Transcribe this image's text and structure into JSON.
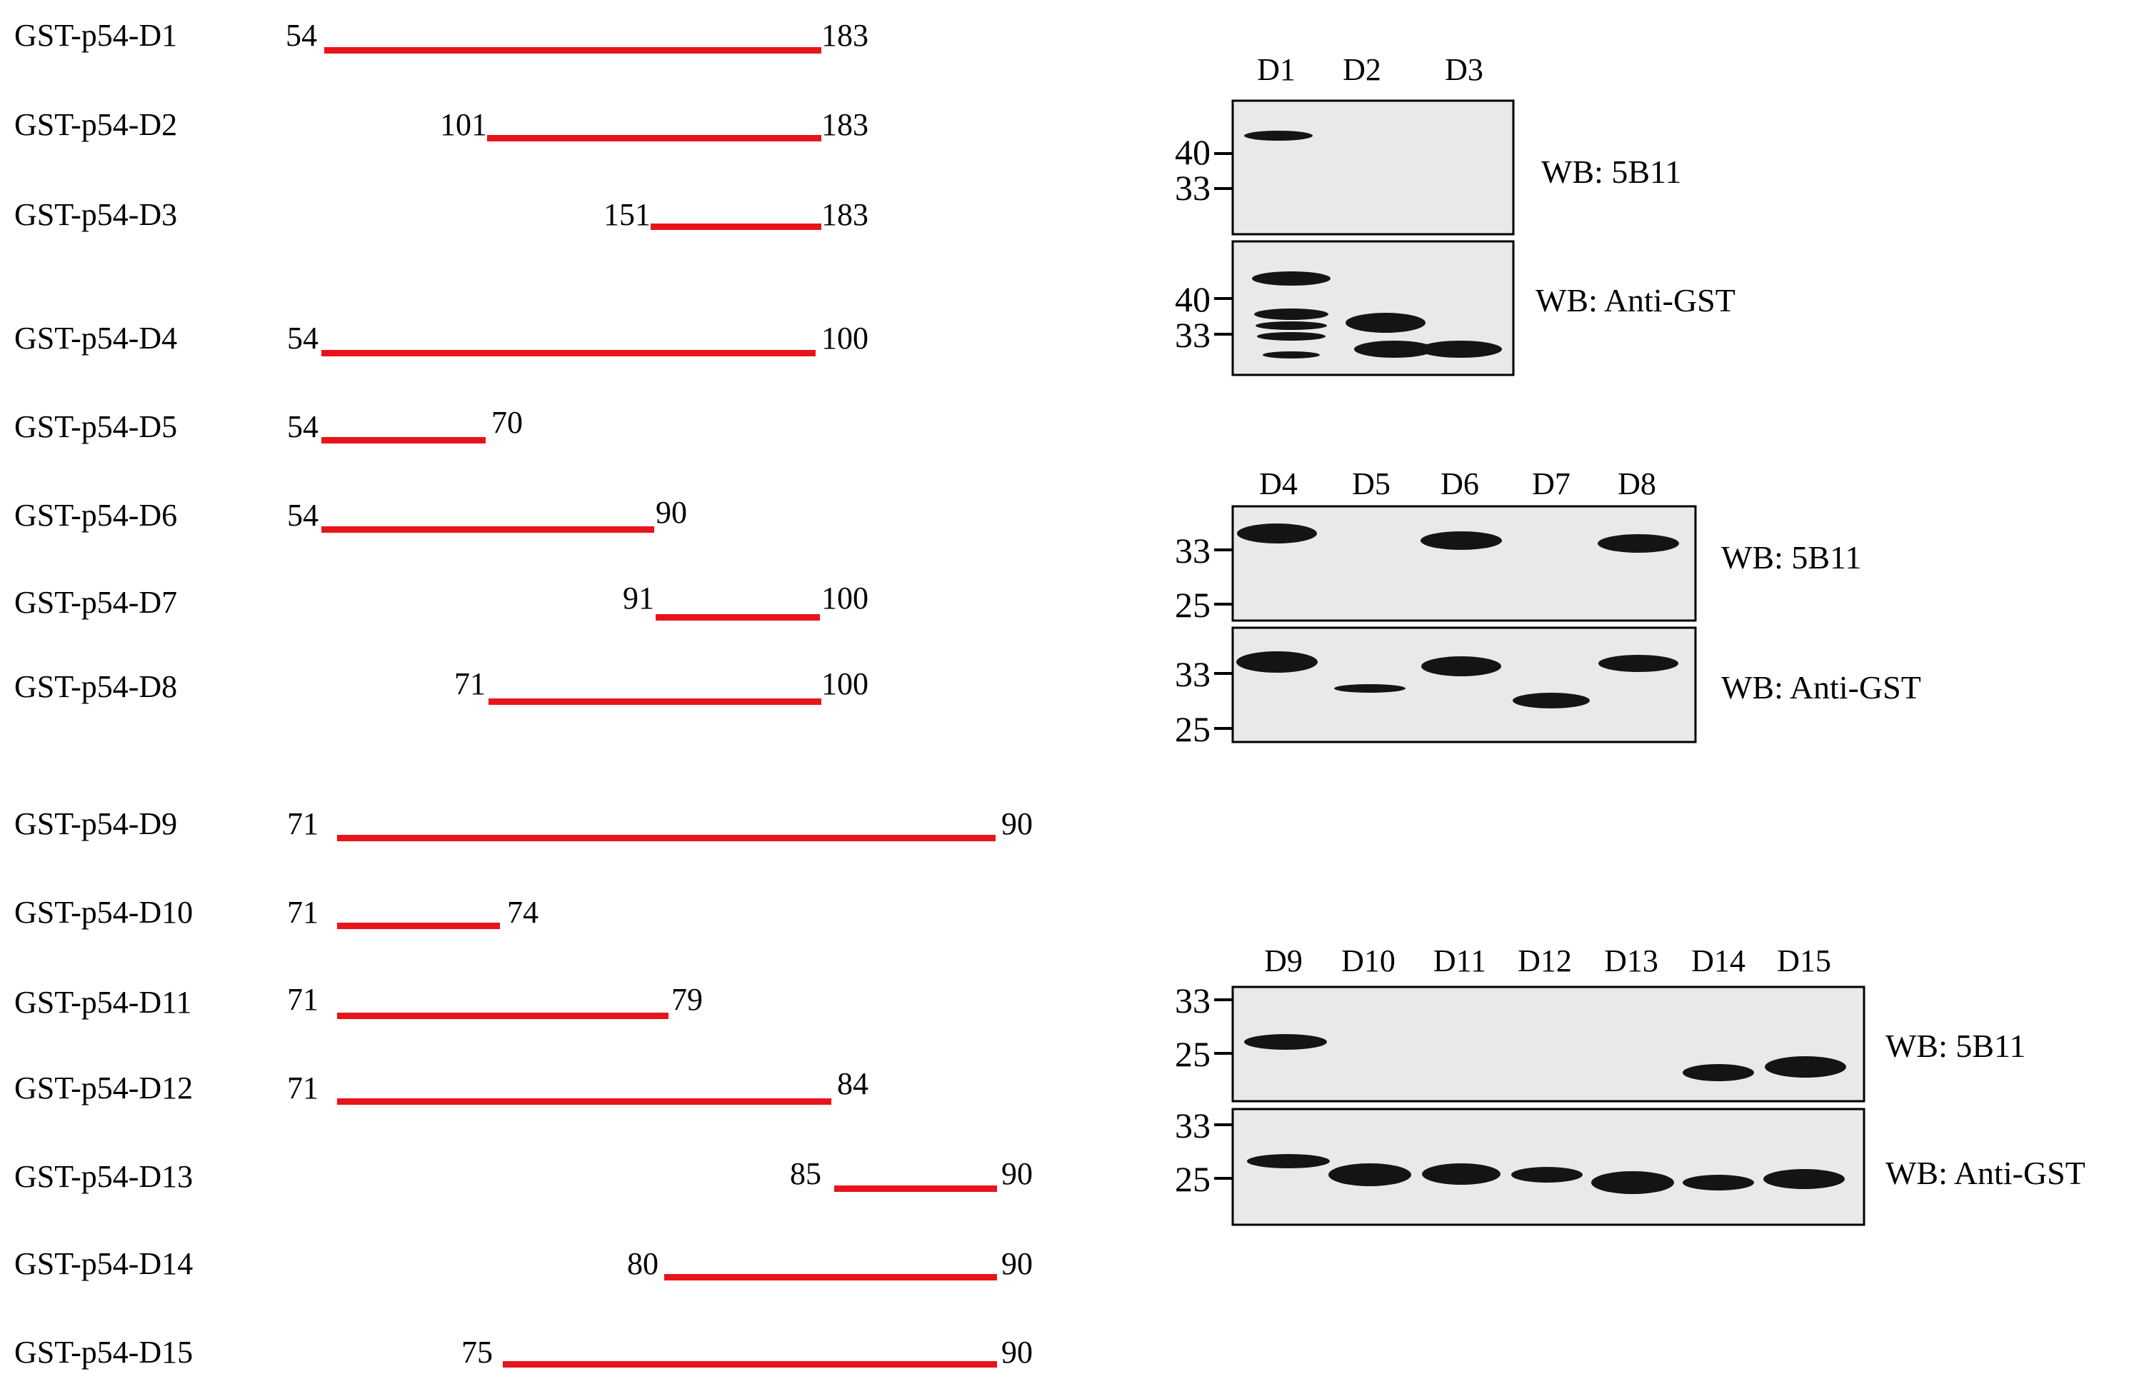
{
  "constructs": [
    {
      "name": "GST-p54-D1",
      "start": "54",
      "end": "183"
    },
    {
      "name": "GST-p54-D2",
      "start": "101",
      "end": "183"
    },
    {
      "name": "GST-p54-D3",
      "start": "151",
      "end": "183"
    },
    {
      "name": "GST-p54-D4",
      "start": "54",
      "end": "100"
    },
    {
      "name": "GST-p54-D5",
      "start": "54",
      "end": "70"
    },
    {
      "name": "GST-p54-D6",
      "start": "54",
      "end": "90"
    },
    {
      "name": "GST-p54-D7",
      "start": "91",
      "end": "100"
    },
    {
      "name": "GST-p54-D8",
      "start": "71",
      "end": "100"
    },
    {
      "name": "GST-p54-D9",
      "start": "71",
      "end": "90"
    },
    {
      "name": "GST-p54-D10",
      "start": "71",
      "end": "74"
    },
    {
      "name": "GST-p54-D11",
      "start": "71",
      "end": "79"
    },
    {
      "name": "GST-p54-D12",
      "start": "71",
      "end": "84"
    },
    {
      "name": "GST-p54-D13",
      "start": "85",
      "end": "90"
    },
    {
      "name": "GST-p54-D14",
      "start": "80",
      "end": "90"
    },
    {
      "name": "GST-p54-D15",
      "start": "75",
      "end": "90"
    }
  ],
  "blots": [
    {
      "lanes": [
        "D1",
        "D2",
        "D3"
      ],
      "panels": [
        {
          "label": "WB: 5B11",
          "markers": [
            "40",
            "33"
          ]
        },
        {
          "label": "WB: Anti-GST",
          "markers": [
            "40",
            "33"
          ]
        }
      ]
    },
    {
      "lanes": [
        "D4",
        "D5",
        "D6",
        "D7",
        "D8"
      ],
      "panels": [
        {
          "label": "WB: 5B11",
          "markers": [
            "33",
            "25"
          ]
        },
        {
          "label": "WB: Anti-GST",
          "markers": [
            "33",
            "25"
          ]
        }
      ]
    },
    {
      "lanes": [
        "D9",
        "D10",
        "D11",
        "D12",
        "D13",
        "D14",
        "D15"
      ],
      "panels": [
        {
          "label": "WB: 5B11",
          "markers": [
            "33",
            "25"
          ]
        },
        {
          "label": "WB: Anti-GST",
          "markers": [
            "33",
            "25"
          ]
        }
      ]
    }
  ],
  "colors": {
    "bar": "#e8141b",
    "band": "#141414",
    "membrane": "#e9e9e9"
  }
}
